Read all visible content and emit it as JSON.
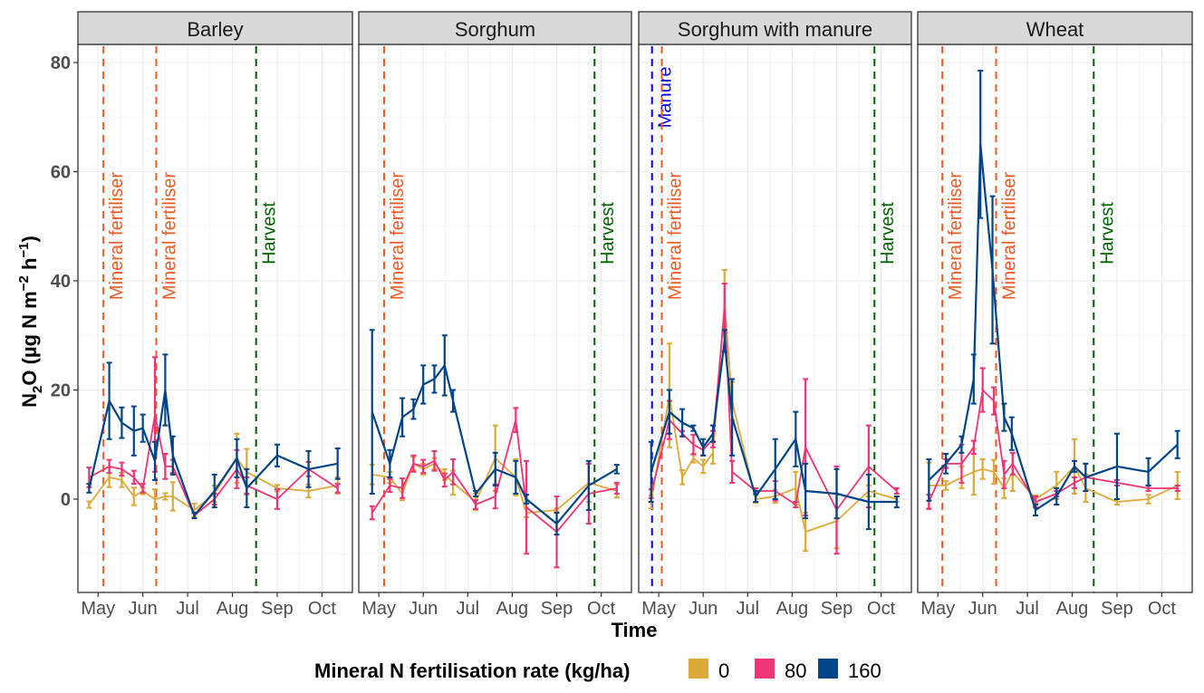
{
  "chart_data": {
    "type": "line",
    "xlabel": "Time",
    "ylabel": "N2O (µg N m^-2 h^-1)",
    "ylabel_parts": {
      "main": "N",
      "sub": "2",
      "rest": "O (µg N m",
      "sup1": "−2",
      "mid": " h",
      "sup2": "−1",
      "end": ")"
    },
    "ylim": [
      -17,
      83
    ],
    "yticks": [
      0,
      20,
      40,
      60,
      80
    ],
    "xlim_month": [
      3.55,
      9.68
    ],
    "xticks": [
      {
        "label": "May",
        "month": 4
      },
      {
        "label": "Jun",
        "month": 5
      },
      {
        "label": "Jul",
        "month": 6
      },
      {
        "label": "Aug",
        "month": 7
      },
      {
        "label": "Sep",
        "month": 8
      },
      {
        "label": "Oct",
        "month": 9
      }
    ],
    "grid": true,
    "legend": {
      "title": "Mineral N fertilisation rate (kg/ha)",
      "placement": "bottom",
      "entries": [
        {
          "label": "0",
          "color": "#DDA93A"
        },
        {
          "label": "80",
          "color": "#EE3377"
        },
        {
          "label": "160",
          "color": "#004488"
        }
      ]
    },
    "panels": [
      {
        "title": "Barley",
        "events": [
          {
            "label": "Mineral fertiliser",
            "month": 4.12,
            "color": "#EE5A24"
          },
          {
            "label": "Mineral fertiliser",
            "month": 5.3,
            "color": "#EE5A24"
          },
          {
            "label": "Harvest",
            "month": 7.53,
            "color": "#006400"
          }
        ],
        "series": [
          {
            "name": "0",
            "x": [
              3.8,
              4.25,
              4.53,
              4.8,
              5.0,
              5.27,
              5.5,
              5.67,
              6.15,
              6.6,
              7.1,
              7.32,
              8.0,
              8.7,
              9.35
            ],
            "y": [
              -1,
              4,
              3.5,
              0.5,
              1.5,
              0,
              0.5,
              0.5,
              -2,
              1,
              7.5,
              5,
              2,
              1.5,
              2.5
            ],
            "err": [
              0.6,
              1.8,
              1.3,
              1.6,
              0.6,
              1.8,
              0.6,
              2.6,
              1.2,
              1.5,
              4.5,
              4.2,
              0.6,
              1.2,
              1.5
            ]
          },
          {
            "name": "80",
            "x": [
              3.8,
              4.25,
              4.53,
              4.8,
              5.0,
              5.27,
              5.5,
              5.67,
              6.15,
              6.6,
              7.1,
              7.32,
              8.0,
              8.7,
              9.35
            ],
            "y": [
              4,
              6,
              5.5,
              4,
              2,
              15.5,
              6,
              6,
              -3,
              0,
              5.5,
              2.5,
              0,
              5.5,
              2
            ],
            "err": [
              1.8,
              1.2,
              1.2,
              1.2,
              0.8,
              10.5,
              2.3,
              1.2,
              0.5,
              1,
              3.5,
              1.5,
              1.8,
              1.3,
              0.8
            ]
          },
          {
            "name": "160",
            "x": [
              3.8,
              4.25,
              4.53,
              4.8,
              5.0,
              5.27,
              5.5,
              5.67,
              6.15,
              6.6,
              7.1,
              7.32,
              8.0,
              8.7,
              9.35
            ],
            "y": [
              2,
              18,
              14,
              12.5,
              13,
              7,
              20,
              8,
              -3,
              1.5,
              7.5,
              2,
              8,
              5.5,
              6.5
            ],
            "err": [
              0.8,
              7,
              2.8,
              4.5,
              2.5,
              3.5,
              6.5,
              3.5,
              0.5,
              3,
              3.5,
              3.5,
              2,
              3.3,
              2.8
            ]
          }
        ]
      },
      {
        "title": "Sorghum",
        "events": [
          {
            "label": "Mineral fertiliser",
            "month": 4.12,
            "color": "#EE5A24"
          },
          {
            "label": "Harvest",
            "month": 8.85,
            "color": "#006400"
          }
        ],
        "series": [
          {
            "name": "0",
            "x": [
              3.85,
              4.25,
              4.53,
              4.78,
              5.0,
              5.25,
              5.48,
              5.67,
              6.18,
              6.62,
              7.08,
              7.32,
              8.0,
              8.72,
              9.35
            ],
            "y": [
              4.5,
              4,
              1,
              6.5,
              5.5,
              6.5,
              4.5,
              3,
              -0.5,
              7.5,
              4,
              -2.5,
              -2,
              3,
              1.5
            ],
            "err": [
              1.8,
              1,
              1.2,
              1.2,
              1,
              1,
              1,
              2.2,
              1.5,
              6,
              3.3,
              0.8,
              0.3,
              3.5,
              1.2
            ]
          },
          {
            "name": "80",
            "x": [
              3.85,
              4.25,
              4.53,
              4.78,
              5.0,
              5.25,
              5.48,
              5.67,
              6.18,
              6.62,
              7.08,
              7.32,
              8.0,
              8.72,
              9.35
            ],
            "y": [
              -2.5,
              2.5,
              2,
              6.5,
              6,
              7,
              3.5,
              5,
              -1,
              0.5,
              14.5,
              -1.5,
              -6,
              1,
              2
            ],
            "err": [
              1.2,
              1.2,
              1.8,
              1.5,
              1.2,
              1.8,
              1.2,
              2.3,
              0.8,
              2.2,
              2.2,
              8.5,
              6.5,
              5.5,
              1
            ]
          },
          {
            "name": "160",
            "x": [
              3.85,
              4.25,
              4.53,
              4.78,
              5.0,
              5.25,
              5.48,
              5.67,
              6.18,
              6.62,
              7.08,
              7.32,
              8.0,
              8.72,
              9.35
            ],
            "y": [
              16,
              6.5,
              15,
              16.5,
              21,
              22,
              24.5,
              18,
              1,
              5.5,
              4,
              0,
              -4.5,
              2.5,
              5.5
            ],
            "err": [
              15,
              2.5,
              3.5,
              1.8,
              3.5,
              2.5,
              5.5,
              2,
              0.5,
              3,
              3,
              0.8,
              2,
              4.5,
              0.8
            ]
          }
        ]
      },
      {
        "title": "Sorghum with manure",
        "events": [
          {
            "label": "Manure",
            "month": 3.85,
            "color": "#0000EE"
          },
          {
            "label": "Mineral fertiliser",
            "month": 4.07,
            "color": "#EE5A24"
          },
          {
            "label": "Harvest",
            "month": 8.85,
            "color": "#006400"
          }
        ],
        "series": [
          {
            "name": "0",
            "x": [
              3.83,
              4.24,
              4.53,
              4.78,
              5.0,
              5.22,
              5.48,
              5.65,
              6.18,
              6.62,
              7.08,
              7.3,
              8.0,
              8.72,
              9.35
            ],
            "y": [
              -0.5,
              19,
              4,
              7.5,
              6,
              8.5,
              36,
              18,
              0,
              0.5,
              2,
              -6,
              -4,
              1.5,
              0
            ],
            "err": [
              1.2,
              9.5,
              1.3,
              0.8,
              1.2,
              2,
              6,
              3.5,
              0.7,
              1.2,
              3,
              3.5,
              5,
              1,
              0.5
            ]
          },
          {
            "name": "80",
            "x": [
              3.83,
              4.24,
              4.53,
              4.78,
              5.0,
              5.22,
              5.48,
              5.65,
              6.18,
              6.62,
              7.08,
              7.3,
              8.0,
              8.72,
              9.35
            ],
            "y": [
              1,
              14.5,
              12,
              10,
              9,
              11,
              35,
              5,
              1.5,
              1.5,
              -1,
              9.5,
              -2,
              6,
              1.5
            ],
            "err": [
              0.8,
              3.5,
              0.5,
              1.8,
              1,
              1.5,
              4.5,
              2,
              0.5,
              1.8,
              0.5,
              12.5,
              8,
              7.5,
              0.5
            ]
          },
          {
            "name": "160",
            "x": [
              3.83,
              4.24,
              4.53,
              4.78,
              5.0,
              5.22,
              5.48,
              5.65,
              6.18,
              6.62,
              7.08,
              7.3,
              8.0,
              8.72,
              9.35
            ],
            "y": [
              5,
              16,
              14,
              13,
              9.5,
              12,
              29,
              15,
              0.5,
              5.5,
              11,
              1.5,
              1,
              -0.5,
              -0.5
            ],
            "err": [
              5.5,
              4,
              2.5,
              0.5,
              1.5,
              1.5,
              2,
              7,
              1,
              5.5,
              5,
              5,
              4.5,
              5,
              1
            ]
          }
        ]
      },
      {
        "title": "Wheat",
        "events": [
          {
            "label": "Mineral fertiliser",
            "month": 4.1,
            "color": "#EE5A24"
          },
          {
            "label": "Mineral fertiliser",
            "month": 5.3,
            "color": "#EE5A24"
          },
          {
            "label": "Harvest",
            "month": 7.48,
            "color": "#006400"
          }
        ],
        "series": [
          {
            "name": "0",
            "x": [
              3.8,
              4.18,
              4.53,
              4.8,
              5.0,
              5.25,
              5.48,
              5.67,
              6.18,
              6.65,
              7.05,
              7.3,
              8.0,
              8.7,
              9.35
            ],
            "y": [
              2.5,
              2.5,
              4,
              5,
              5.5,
              5,
              2,
              5,
              0,
              2.5,
              6,
              2,
              -0.5,
              0,
              2.5
            ],
            "err": [
              4.2,
              0.8,
              2,
              4.2,
              1.8,
              2.2,
              1.8,
              3.5,
              0.7,
              2.5,
              5,
              2.5,
              0.5,
              0.8,
              2.5
            ]
          },
          {
            "name": "80",
            "x": [
              3.8,
              4.18,
              4.53,
              4.8,
              5.0,
              5.25,
              5.48,
              5.67,
              6.18,
              6.65,
              7.05,
              7.3,
              8.0,
              8.7,
              9.35
            ],
            "y": [
              -0.5,
              6.5,
              6.5,
              9.5,
              20,
              18,
              4.5,
              6.5,
              -0.5,
              1,
              3,
              4,
              3,
              2,
              2
            ],
            "err": [
              1.3,
              0.8,
              3.5,
              1.2,
              4,
              2.5,
              2.5,
              2,
              1,
              0.5,
              1,
              2.5,
              0.5,
              0.5,
              0.5
            ]
          },
          {
            "name": "160",
            "x": [
              3.8,
              4.18,
              4.53,
              4.8,
              4.95,
              5.22,
              5.48,
              5.65,
              6.18,
              6.65,
              7.05,
              7.3,
              8.0,
              8.7,
              9.35
            ],
            "y": [
              3.5,
              6.5,
              10,
              22,
              65,
              42,
              15,
              12,
              -2,
              0.5,
              6,
              4,
              6,
              5,
              10
            ],
            "err": [
              3.8,
              1.8,
              1.5,
              4.5,
              13.5,
              13.5,
              2.5,
              3,
              1,
              1.5,
              1,
              2.5,
              6,
              2.5,
              2.5
            ]
          }
        ]
      }
    ]
  }
}
